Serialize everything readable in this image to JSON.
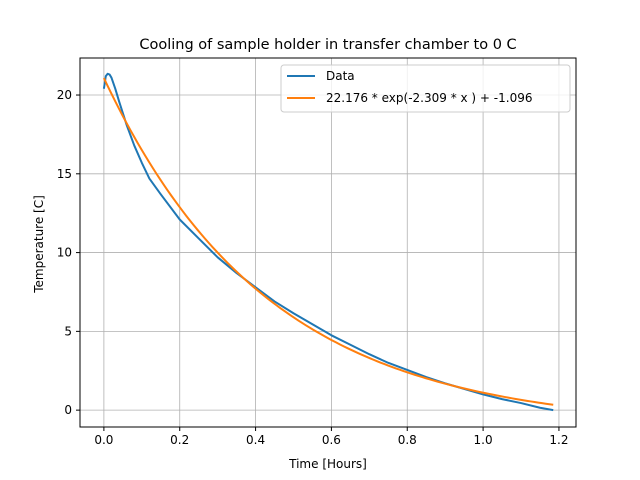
{
  "chart_data": {
    "type": "line",
    "title": "Cooling of sample holder in transfer chamber to 0 C",
    "xlabel": "Time [Hours]",
    "ylabel": "Temperature [C]",
    "xlim": [
      -0.063,
      1.245
    ],
    "ylim": [
      -1.07,
      22.35
    ],
    "xticks": [
      0.0,
      0.2,
      0.4,
      0.6,
      0.8,
      1.0,
      1.2
    ],
    "xtick_labels": [
      "0.0",
      "0.2",
      "0.4",
      "0.6",
      "0.8",
      "1.0",
      "1.2"
    ],
    "yticks": [
      0,
      5,
      10,
      15,
      20
    ],
    "ytick_labels": [
      "0",
      "5",
      "10",
      "15",
      "20"
    ],
    "grid": true,
    "legend_position": "upper-right",
    "series": [
      {
        "name": "Data",
        "color": "#1f77b4",
        "x": [
          0.0,
          0.005,
          0.01,
          0.015,
          0.02,
          0.03,
          0.04,
          0.06,
          0.08,
          0.1,
          0.12,
          0.15,
          0.2,
          0.25,
          0.3,
          0.35,
          0.4,
          0.45,
          0.5,
          0.55,
          0.6,
          0.65,
          0.7,
          0.75,
          0.8,
          0.85,
          0.9,
          0.95,
          1.0,
          1.05,
          1.1,
          1.15,
          1.185
        ],
        "y": [
          20.4,
          21.2,
          21.35,
          21.3,
          21.1,
          20.4,
          19.6,
          18.1,
          16.8,
          15.7,
          14.7,
          13.7,
          12.1,
          10.9,
          9.7,
          8.7,
          7.8,
          6.9,
          6.15,
          5.45,
          4.75,
          4.15,
          3.55,
          3.0,
          2.55,
          2.1,
          1.7,
          1.35,
          1.0,
          0.7,
          0.45,
          0.15,
          0.0
        ]
      },
      {
        "name": "22.176 * exp(-2.309 * x ) + -1.096",
        "color": "#ff7f0e",
        "fit": {
          "a": 22.176,
          "b": -2.309,
          "c": -1.096,
          "x_start": 0.0,
          "x_end": 1.185
        }
      }
    ]
  }
}
